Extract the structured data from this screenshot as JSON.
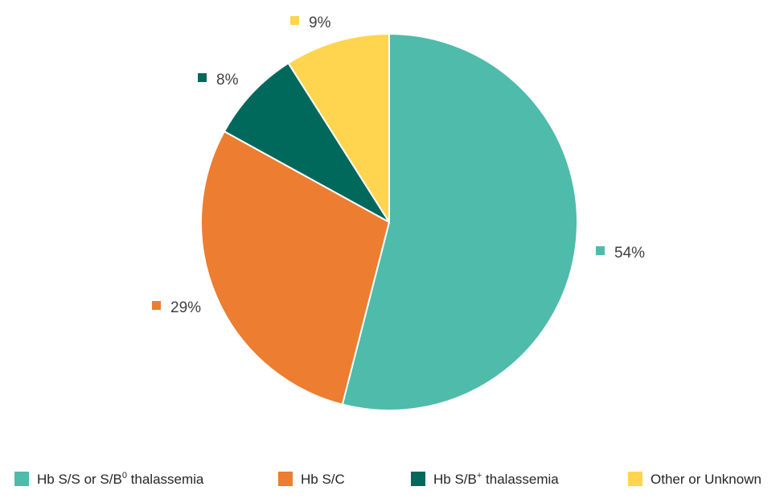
{
  "chart_data": {
    "type": "pie",
    "title": "",
    "start_angle_deg": 0,
    "direction": "clockwise",
    "legend_position": "bottom",
    "slices": [
      {
        "label": "Hb S/S or S/B",
        "label_sup": "0",
        "label_suffix": " thalassemia",
        "value": 54,
        "display": "54%",
        "color": "#4FBBAA"
      },
      {
        "label": "Hb S/C",
        "label_sup": "",
        "label_suffix": "",
        "value": 29,
        "display": "29%",
        "color": "#ED7D31"
      },
      {
        "label": "Hb S/B",
        "label_sup": "+",
        "label_suffix": " thalassemia",
        "value": 8,
        "display": "8%",
        "color": "#00695C"
      },
      {
        "label": "Other or Unknown",
        "label_sup": "",
        "label_suffix": "",
        "value": 9,
        "display": "9%",
        "color": "#FFD54F"
      }
    ]
  }
}
